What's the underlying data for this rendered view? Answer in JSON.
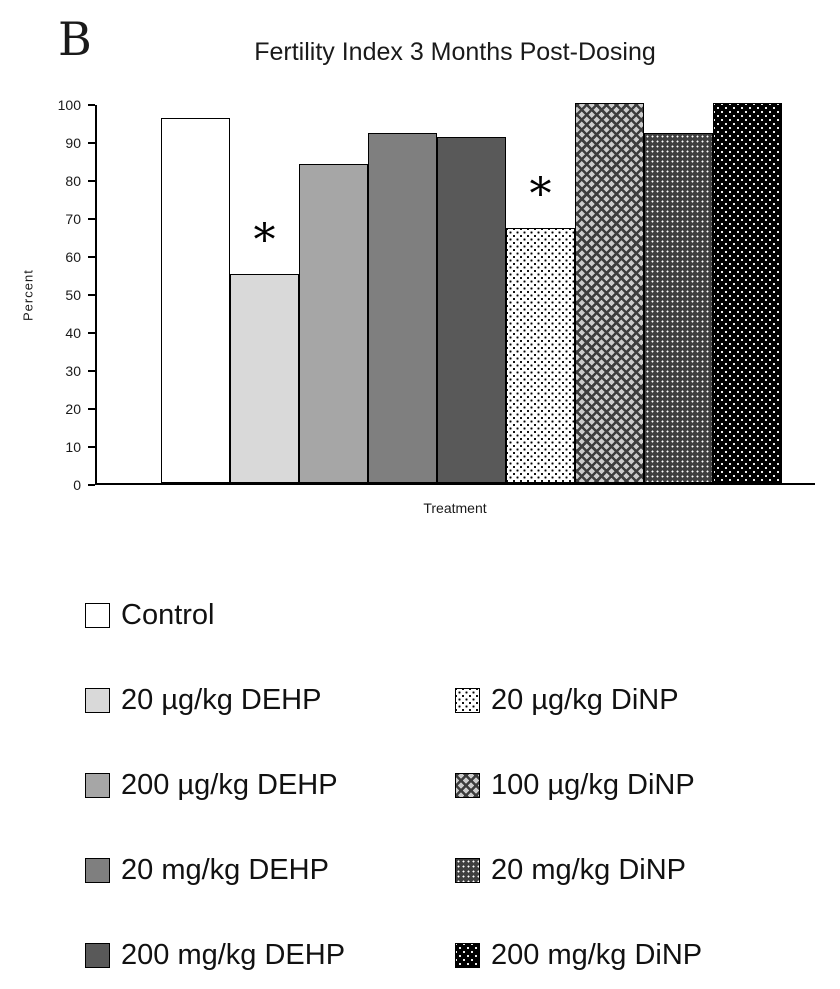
{
  "panel_label": "B",
  "chart_data": {
    "type": "bar",
    "title": "Fertility Index 3 Months Post-Dosing",
    "xlabel": "Treatment",
    "ylabel": "Percent",
    "ylim": [
      0,
      100
    ],
    "yticks": [
      0,
      10,
      20,
      30,
      40,
      50,
      60,
      70,
      80,
      90,
      100
    ],
    "grid": false,
    "legend_position": "below",
    "categories": [
      "Control",
      "20 µg/kg DEHP",
      "200 µg/kg DEHP",
      "20 mg/kg DEHP",
      "200 mg/kg DEHP",
      "20 µg/kg DiNP",
      "100 µg/kg DiNP",
      "20 mg/kg DiNP",
      "200 mg/kg DiNP"
    ],
    "values": [
      96,
      55,
      84,
      92,
      91,
      67,
      100,
      92,
      100
    ],
    "patterns": [
      "solid-white",
      "solid-lightgray",
      "solid-gray",
      "solid-midgray",
      "solid-darkgray",
      "dots-on-white",
      "diamond-check",
      "dots-on-darkgray",
      "dots-on-black"
    ],
    "annotations": [
      {
        "index": 1,
        "category": "20 µg/kg DEHP",
        "text": "*"
      },
      {
        "index": 5,
        "category": "20 µg/kg DiNP",
        "text": "*"
      }
    ]
  },
  "legend": {
    "left": [
      {
        "label": "Control",
        "pattern": "solid-white"
      },
      {
        "label": "20 µg/kg DEHP",
        "pattern": "solid-lightgray"
      },
      {
        "label": "200 µg/kg DEHP",
        "pattern": "solid-gray"
      },
      {
        "label": "20 mg/kg DEHP",
        "pattern": "solid-midgray"
      },
      {
        "label": "200 mg/kg DEHP",
        "pattern": "solid-darkgray"
      }
    ],
    "right": [
      {
        "label": "20 µg/kg DiNP",
        "pattern": "dots-on-white"
      },
      {
        "label": "100 µg/kg DiNP",
        "pattern": "diamond-check"
      },
      {
        "label": "20 mg/kg DiNP",
        "pattern": "dots-on-darkgray"
      },
      {
        "label": "200 mg/kg DiNP",
        "pattern": "dots-on-black"
      }
    ]
  },
  "colors": {
    "axis": "#000000",
    "text": "#1a1a1a",
    "background": "#ffffff"
  }
}
